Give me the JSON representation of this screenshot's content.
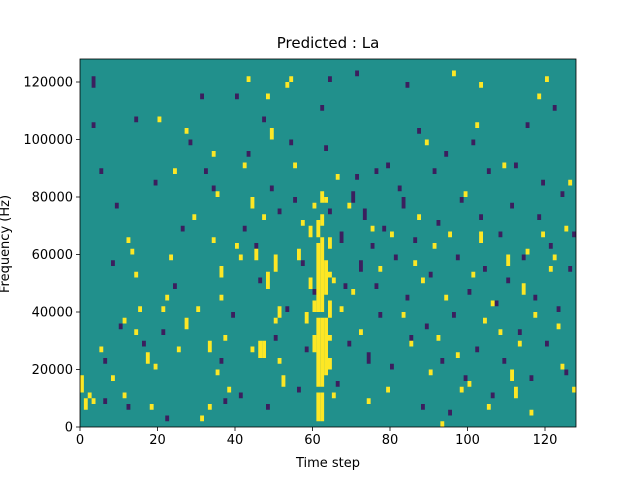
{
  "chart_data": {
    "type": "heatmap",
    "title": "Predicted : La",
    "xlabel": "Time step",
    "ylabel": "Frequency (Hz)",
    "xlim": [
      0,
      128
    ],
    "ylim": [
      0,
      128000
    ],
    "xticks": [
      0,
      20,
      40,
      60,
      80,
      100,
      120
    ],
    "xtick_labels": [
      "0",
      "20",
      "40",
      "60",
      "80",
      "100",
      "120"
    ],
    "yticks": [
      0,
      20000,
      40000,
      60000,
      80000,
      100000,
      120000
    ],
    "ytick_labels": [
      "0",
      "20000",
      "40000",
      "60000",
      "80000",
      "100000",
      "120000"
    ],
    "n_time_steps": 128,
    "n_freq_bins": 64,
    "bin_height_hz": 2000,
    "colormap": {
      "-1": "#3b1f5e",
      "0": "#21908c",
      "1": "#fde725"
    },
    "background_value": 0,
    "grid": false,
    "legend": "none",
    "cells_high": [
      [
        61,
        1,
        6
      ],
      [
        62,
        1,
        6
      ],
      [
        61,
        7,
        19
      ],
      [
        62,
        7,
        19
      ],
      [
        63,
        9,
        19
      ],
      [
        61,
        20,
        32
      ],
      [
        62,
        20,
        33
      ],
      [
        63,
        23,
        29
      ],
      [
        61,
        33,
        36
      ],
      [
        62,
        35,
        37
      ],
      [
        64,
        31,
        33
      ],
      [
        64,
        26,
        27
      ],
      [
        64,
        19,
        22
      ],
      [
        60,
        13,
        16
      ],
      [
        60,
        20,
        22
      ],
      [
        59,
        24,
        26
      ],
      [
        59,
        33,
        35
      ],
      [
        60,
        38,
        39
      ],
      [
        62,
        39,
        41
      ],
      [
        63,
        39,
        40
      ],
      [
        64,
        15,
        16
      ],
      [
        64,
        10,
        12
      ],
      [
        65,
        5,
        6
      ],
      [
        65,
        25,
        26
      ],
      [
        46,
        12,
        15
      ],
      [
        47,
        12,
        15
      ],
      [
        51,
        19,
        21
      ],
      [
        52,
        7,
        9
      ],
      [
        50,
        27,
        30
      ],
      [
        25,
        13,
        14
      ],
      [
        27,
        17,
        19
      ],
      [
        30,
        20,
        21
      ],
      [
        33,
        3,
        4
      ],
      [
        33,
        13,
        15
      ],
      [
        35,
        40,
        41
      ],
      [
        36,
        26,
        28
      ],
      [
        38,
        6,
        7
      ],
      [
        40,
        31,
        32
      ],
      [
        42,
        45,
        46
      ],
      [
        44,
        13,
        14
      ],
      [
        44,
        38,
        40
      ],
      [
        45,
        29,
        31
      ],
      [
        47,
        36,
        37
      ],
      [
        48,
        24,
        27
      ],
      [
        49,
        50,
        52
      ],
      [
        50,
        18,
        19
      ],
      [
        51,
        11,
        12
      ],
      [
        53,
        59,
        60
      ],
      [
        54,
        60,
        61
      ],
      [
        55,
        45,
        46
      ],
      [
        56,
        29,
        31
      ],
      [
        57,
        35,
        36
      ],
      [
        58,
        18,
        20
      ],
      [
        0,
        6,
        9
      ],
      [
        1,
        3,
        5
      ],
      [
        2,
        5,
        6
      ],
      [
        3,
        4,
        5
      ],
      [
        5,
        13,
        14
      ],
      [
        8,
        8,
        9
      ],
      [
        11,
        5,
        6
      ],
      [
        11,
        18,
        19
      ],
      [
        12,
        32,
        33
      ],
      [
        13,
        30,
        31
      ],
      [
        14,
        16,
        17
      ],
      [
        14,
        26,
        27
      ],
      [
        15,
        20,
        21
      ],
      [
        17,
        11,
        13
      ],
      [
        18,
        3,
        4
      ],
      [
        19,
        10,
        11
      ],
      [
        20,
        53,
        54
      ],
      [
        21,
        20,
        21
      ],
      [
        22,
        22,
        23
      ],
      [
        23,
        29,
        30
      ],
      [
        24,
        44,
        45
      ],
      [
        27,
        51,
        52
      ],
      [
        29,
        36,
        37
      ],
      [
        31,
        1,
        2
      ],
      [
        34,
        47,
        48
      ],
      [
        34,
        32,
        33
      ],
      [
        35,
        9,
        10
      ],
      [
        36,
        22,
        23
      ],
      [
        37,
        15,
        16
      ],
      [
        41,
        29,
        30
      ],
      [
        43,
        60,
        61
      ],
      [
        48,
        57,
        58
      ],
      [
        66,
        43,
        44
      ],
      [
        67,
        20,
        21
      ],
      [
        69,
        38,
        39
      ],
      [
        70,
        23,
        24
      ],
      [
        72,
        16,
        17
      ],
      [
        74,
        4,
        5
      ],
      [
        75,
        34,
        35
      ],
      [
        77,
        27,
        28
      ],
      [
        79,
        6,
        7
      ],
      [
        80,
        33,
        34
      ],
      [
        83,
        19,
        20
      ],
      [
        85,
        14,
        15
      ],
      [
        87,
        36,
        37
      ],
      [
        88,
        25,
        26
      ],
      [
        90,
        9,
        10
      ],
      [
        91,
        31,
        32
      ],
      [
        92,
        15,
        16
      ],
      [
        93,
        0,
        1
      ],
      [
        94,
        22,
        23
      ],
      [
        96,
        61,
        62
      ],
      [
        97,
        12,
        13
      ],
      [
        99,
        40,
        41
      ],
      [
        100,
        7,
        8
      ],
      [
        101,
        26,
        27
      ],
      [
        102,
        52,
        53
      ],
      [
        103,
        32,
        34
      ],
      [
        104,
        18,
        19
      ],
      [
        105,
        3,
        4
      ],
      [
        106,
        21,
        22
      ],
      [
        108,
        16,
        17
      ],
      [
        110,
        28,
        30
      ],
      [
        111,
        8,
        10
      ],
      [
        112,
        5,
        7
      ],
      [
        113,
        14,
        15
      ],
      [
        114,
        23,
        25
      ],
      [
        115,
        30,
        31
      ],
      [
        116,
        2,
        3
      ],
      [
        117,
        19,
        20
      ],
      [
        118,
        57,
        58
      ],
      [
        119,
        33,
        34
      ],
      [
        120,
        60,
        61
      ],
      [
        121,
        27,
        28
      ],
      [
        122,
        29,
        30
      ],
      [
        123,
        17,
        18
      ],
      [
        124,
        10,
        11
      ],
      [
        125,
        34,
        35
      ],
      [
        126,
        42,
        43
      ],
      [
        127,
        6,
        7
      ],
      [
        109,
        45,
        46
      ],
      [
        103,
        59,
        60
      ],
      [
        98,
        6,
        7
      ],
      [
        95,
        33,
        34
      ],
      [
        86,
        28,
        29
      ],
      [
        89,
        49,
        50
      ]
    ],
    "cells_low": [
      [
        3,
        59,
        61
      ],
      [
        6,
        4,
        5
      ],
      [
        3,
        52,
        53
      ],
      [
        5,
        44,
        45
      ],
      [
        6,
        11,
        12
      ],
      [
        8,
        28,
        29
      ],
      [
        9,
        38,
        39
      ],
      [
        10,
        17,
        18
      ],
      [
        12,
        3,
        4
      ],
      [
        14,
        53,
        54
      ],
      [
        16,
        14,
        15
      ],
      [
        19,
        42,
        43
      ],
      [
        21,
        16,
        17
      ],
      [
        22,
        1,
        2
      ],
      [
        24,
        24,
        25
      ],
      [
        26,
        34,
        35
      ],
      [
        28,
        49,
        50
      ],
      [
        31,
        57,
        58
      ],
      [
        32,
        44,
        45
      ],
      [
        34,
        41,
        42
      ],
      [
        36,
        11,
        12
      ],
      [
        37,
        4,
        5
      ],
      [
        39,
        19,
        20
      ],
      [
        40,
        57,
        58
      ],
      [
        41,
        5,
        6
      ],
      [
        42,
        34,
        35
      ],
      [
        43,
        47,
        48
      ],
      [
        45,
        31,
        32
      ],
      [
        46,
        25,
        26
      ],
      [
        47,
        53,
        54
      ],
      [
        48,
        3,
        4
      ],
      [
        49,
        41,
        42
      ],
      [
        50,
        15,
        16
      ],
      [
        51,
        37,
        38
      ],
      [
        53,
        20,
        21
      ],
      [
        54,
        49,
        50
      ],
      [
        55,
        39,
        40
      ],
      [
        56,
        6,
        7
      ],
      [
        57,
        28,
        29
      ],
      [
        58,
        13,
        14
      ],
      [
        60,
        23,
        24
      ],
      [
        62,
        55,
        56
      ],
      [
        63,
        48,
        49
      ],
      [
        64,
        37,
        38
      ],
      [
        66,
        7,
        8
      ],
      [
        67,
        32,
        34
      ],
      [
        68,
        24,
        25
      ],
      [
        69,
        14,
        15
      ],
      [
        70,
        39,
        41
      ],
      [
        71,
        43,
        44
      ],
      [
        72,
        27,
        29
      ],
      [
        73,
        36,
        38
      ],
      [
        74,
        11,
        13
      ],
      [
        75,
        31,
        32
      ],
      [
        76,
        24,
        25
      ],
      [
        77,
        19,
        20
      ],
      [
        78,
        34,
        35
      ],
      [
        79,
        45,
        46
      ],
      [
        80,
        10,
        11
      ],
      [
        81,
        29,
        30
      ],
      [
        82,
        41,
        42
      ],
      [
        83,
        38,
        40
      ],
      [
        84,
        22,
        23
      ],
      [
        85,
        15,
        16
      ],
      [
        86,
        32,
        33
      ],
      [
        87,
        51,
        52
      ],
      [
        88,
        3,
        4
      ],
      [
        89,
        17,
        18
      ],
      [
        90,
        26,
        27
      ],
      [
        91,
        44,
        45
      ],
      [
        92,
        35,
        36
      ],
      [
        93,
        11,
        12
      ],
      [
        94,
        47,
        48
      ],
      [
        95,
        2,
        3
      ],
      [
        96,
        19,
        20
      ],
      [
        97,
        29,
        30
      ],
      [
        98,
        39,
        40
      ],
      [
        99,
        8,
        9
      ],
      [
        100,
        23,
        24
      ],
      [
        101,
        49,
        50
      ],
      [
        102,
        13,
        14
      ],
      [
        103,
        36,
        37
      ],
      [
        104,
        27,
        28
      ],
      [
        105,
        44,
        45
      ],
      [
        106,
        5,
        6
      ],
      [
        107,
        21,
        22
      ],
      [
        108,
        33,
        34
      ],
      [
        109,
        11,
        12
      ],
      [
        110,
        25,
        26
      ],
      [
        111,
        38,
        39
      ],
      [
        112,
        45,
        46
      ],
      [
        113,
        16,
        17
      ],
      [
        114,
        29,
        30
      ],
      [
        115,
        52,
        53
      ],
      [
        116,
        8,
        9
      ],
      [
        117,
        22,
        23
      ],
      [
        118,
        36,
        37
      ],
      [
        119,
        42,
        43
      ],
      [
        120,
        14,
        15
      ],
      [
        121,
        31,
        32
      ],
      [
        122,
        55,
        56
      ],
      [
        123,
        20,
        21
      ],
      [
        124,
        40,
        41
      ],
      [
        125,
        9,
        10
      ],
      [
        126,
        27,
        28
      ],
      [
        127,
        33,
        34
      ],
      [
        64,
        60,
        61
      ],
      [
        71,
        61,
        62
      ],
      [
        76,
        44,
        45
      ],
      [
        84,
        59,
        60
      ]
    ]
  }
}
